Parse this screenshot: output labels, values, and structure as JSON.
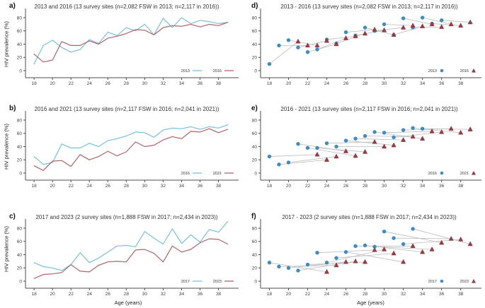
{
  "figure": {
    "ylabel": "HIV prevalence (%)",
    "xlabel": "Age (years)",
    "colors": {
      "line_blue": "#76c2de",
      "line_red": "#b2636a",
      "dot_blue": "#3d8dc3",
      "triangle_red": "#9c3a43",
      "connector_gray": "#bcbcbc",
      "spine": "#4d4d4d",
      "text": "#333333"
    }
  },
  "chart_data": [
    {
      "id": "a",
      "panel_label": "a)",
      "type": "line",
      "title": "2013 and 2016 (13 survey sites (n=2,082 FSW in 2013; n=2,117 in 2016))",
      "ylabel": "HIV prevalence (%)",
      "xlabel": "",
      "grid": false,
      "legend_position": "bottom-right",
      "xlim": [
        17.3,
        39.8
      ],
      "ylim": [
        0,
        92
      ],
      "x_ticks": [
        18,
        20,
        22,
        24,
        26,
        28,
        30,
        32,
        34,
        36,
        38
      ],
      "y_ticks": [
        0,
        20,
        40,
        60,
        80
      ],
      "x": [
        18,
        19,
        20,
        21,
        22,
        23,
        24,
        25,
        26,
        27,
        28,
        29,
        30,
        31,
        32,
        33,
        34,
        35,
        36,
        37,
        38,
        39
      ],
      "series": [
        {
          "name": "2013",
          "color": "#76c2de",
          "values": [
            10,
            38,
            46,
            35,
            28,
            32,
            47,
            41,
            58,
            53,
            65,
            60,
            70,
            54,
            79,
            65,
            80,
            71,
            76,
            74,
            71,
            73
          ]
        },
        {
          "name": "2016",
          "color": "#b2636a",
          "values": [
            25,
            13,
            16,
            44,
            38,
            38,
            45,
            40,
            49,
            52,
            56,
            62,
            61,
            54,
            65,
            68,
            67,
            70,
            66,
            70,
            68,
            73
          ]
        }
      ]
    },
    {
      "id": "b",
      "panel_label": "b)",
      "type": "line",
      "title": "2016 and 2021 (13 survey sites (n=2,117 FSW in 2016; n=2,041 in 2021))",
      "ylabel": "HIV prevalence (%)",
      "xlabel": "",
      "grid": false,
      "legend_position": "bottom-right",
      "xlim": [
        17.3,
        39.8
      ],
      "ylim": [
        0,
        92
      ],
      "x_ticks": [
        18,
        20,
        22,
        24,
        26,
        28,
        30,
        32,
        34,
        36,
        38
      ],
      "y_ticks": [
        0,
        20,
        40,
        60,
        80
      ],
      "x": [
        18,
        19,
        20,
        21,
        22,
        23,
        24,
        25,
        26,
        27,
        28,
        29,
        30,
        31,
        32,
        33,
        34,
        35,
        36,
        37,
        38,
        39
      ],
      "series": [
        {
          "name": "2016",
          "color": "#76c2de",
          "values": [
            25,
            13,
            16,
            44,
            38,
            38,
            45,
            40,
            49,
            52,
            56,
            62,
            61,
            54,
            65,
            68,
            67,
            70,
            66,
            70,
            68,
            73
          ]
        },
        {
          "name": "2021",
          "color": "#b2636a",
          "values": [
            11,
            4,
            18,
            19,
            10,
            28,
            20,
            25,
            33,
            26,
            32,
            47,
            40,
            42,
            50,
            55,
            52,
            63,
            62,
            67,
            61,
            66
          ]
        }
      ]
    },
    {
      "id": "c",
      "panel_label": "c)",
      "type": "line",
      "title": "2017 and 2023 (2 survey sites (n=1,888 FSW in 2017; n=2,434 in 2023))",
      "ylabel": "HIV prevalence (%)",
      "xlabel": "Age (years)",
      "grid": false,
      "legend_position": "bottom-right",
      "xlim": [
        17.3,
        39.8
      ],
      "ylim": [
        0,
        92
      ],
      "x_ticks": [
        18,
        20,
        22,
        24,
        26,
        28,
        30,
        32,
        34,
        36,
        38
      ],
      "y_ticks": [
        0,
        20,
        40,
        60,
        80
      ],
      "x": [
        18,
        19,
        20,
        21,
        22,
        23,
        24,
        25,
        26,
        27,
        28,
        29,
        30,
        31,
        32,
        33,
        34,
        35,
        36,
        37,
        38,
        39
      ],
      "series": [
        {
          "name": "2017",
          "color": "#76c2de",
          "values": [
            28,
            22,
            20,
            16,
            25,
            43,
            28,
            35,
            44,
            53,
            54,
            52,
            75,
            65,
            56,
            79,
            57,
            70,
            59,
            78,
            74,
            90
          ]
        },
        {
          "name": "2023",
          "color": "#b2636a",
          "values": [
            4,
            10,
            11,
            13,
            25,
            15,
            14,
            24,
            29,
            30,
            29,
            47,
            48,
            42,
            29,
            53,
            44,
            48,
            58,
            64,
            63,
            56
          ]
        }
      ]
    },
    {
      "id": "d",
      "panel_label": "d)",
      "type": "scatter",
      "title": "2013 - 2016 (13 survey sites (n=2,082 FSW in 2013; n=2,117 in 2016))",
      "ylabel": "",
      "xlabel": "",
      "grid": false,
      "legend_position": "bottom-right",
      "cohort_offset_years": 3,
      "xlim": [
        17.3,
        39.8
      ],
      "ylim": [
        0,
        92
      ],
      "x_ticks": [
        18,
        20,
        22,
        24,
        26,
        28,
        30,
        32,
        34,
        36,
        38
      ],
      "y_ticks": [
        0,
        20,
        40,
        60,
        80
      ],
      "series": [
        {
          "name": "2013",
          "marker": "circle",
          "color": "#3d8dc3",
          "x": [
            18,
            19,
            20,
            21,
            22,
            23,
            24,
            25,
            26,
            27,
            28,
            29,
            30,
            31,
            32,
            33,
            34,
            35,
            36
          ],
          "values": [
            10,
            38,
            46,
            35,
            28,
            32,
            47,
            41,
            58,
            53,
            65,
            60,
            70,
            54,
            79,
            65,
            80,
            71,
            76
          ]
        },
        {
          "name": "2016",
          "marker": "triangle",
          "color": "#9c3a43",
          "x": [
            21,
            22,
            23,
            24,
            25,
            26,
            27,
            28,
            29,
            30,
            31,
            32,
            33,
            34,
            35,
            36,
            37,
            38,
            39
          ],
          "values": [
            44,
            38,
            38,
            45,
            40,
            49,
            52,
            56,
            62,
            61,
            54,
            65,
            68,
            67,
            70,
            66,
            70,
            68,
            73
          ]
        }
      ]
    },
    {
      "id": "e",
      "panel_label": "e)",
      "type": "scatter",
      "title": "2016 - 2021 (13 survey sites (n=2,117 FSW in 2016; n=2,041 in 2021))",
      "ylabel": "",
      "xlabel": "",
      "grid": false,
      "legend_position": "bottom-right",
      "cohort_offset_years": 5,
      "xlim": [
        17.3,
        39.8
      ],
      "ylim": [
        0,
        92
      ],
      "x_ticks": [
        18,
        20,
        22,
        24,
        26,
        28,
        30,
        32,
        34,
        36,
        38
      ],
      "y_ticks": [
        0,
        20,
        40,
        60,
        80
      ],
      "series": [
        {
          "name": "2016",
          "marker": "circle",
          "color": "#3d8dc3",
          "x": [
            18,
            19,
            20,
            21,
            22,
            23,
            24,
            25,
            26,
            27,
            28,
            29,
            30,
            31,
            32,
            33,
            34
          ],
          "values": [
            25,
            13,
            16,
            44,
            38,
            38,
            45,
            40,
            49,
            52,
            56,
            62,
            61,
            54,
            65,
            68,
            67
          ]
        },
        {
          "name": "2021",
          "marker": "triangle",
          "color": "#9c3a43",
          "x": [
            23,
            24,
            25,
            26,
            27,
            28,
            29,
            30,
            31,
            32,
            33,
            34,
            35,
            36,
            37,
            38,
            39
          ],
          "values": [
            28,
            20,
            25,
            33,
            26,
            32,
            47,
            40,
            42,
            50,
            55,
            52,
            63,
            62,
            67,
            61,
            66
          ]
        }
      ]
    },
    {
      "id": "f",
      "panel_label": "f)",
      "type": "scatter",
      "title": "2017 - 2023 (2 survey sites (n=1,888 FSW in 2017; n=2,434 in 2023))",
      "ylabel": "",
      "xlabel": "Age (years)",
      "grid": false,
      "legend_position": "bottom-right",
      "cohort_offset_years": 6,
      "xlim": [
        17.3,
        39.8
      ],
      "ylim": [
        0,
        92
      ],
      "x_ticks": [
        18,
        20,
        22,
        24,
        26,
        28,
        30,
        32,
        34,
        36,
        38
      ],
      "y_ticks": [
        0,
        20,
        40,
        60,
        80
      ],
      "series": [
        {
          "name": "2017",
          "marker": "circle",
          "color": "#3d8dc3",
          "x": [
            18,
            19,
            20,
            21,
            22,
            23,
            24,
            25,
            26,
            27,
            28,
            29,
            30,
            31,
            32,
            33
          ],
          "values": [
            28,
            22,
            20,
            16,
            25,
            43,
            28,
            35,
            44,
            53,
            54,
            52,
            75,
            65,
            56,
            79
          ]
        },
        {
          "name": "2023",
          "marker": "triangle",
          "color": "#9c3a43",
          "x": [
            24,
            25,
            26,
            27,
            28,
            29,
            30,
            31,
            32,
            33,
            34,
            35,
            36,
            37,
            38,
            39
          ],
          "values": [
            14,
            24,
            29,
            30,
            29,
            47,
            48,
            42,
            29,
            53,
            44,
            48,
            58,
            64,
            63,
            56
          ]
        }
      ]
    }
  ]
}
